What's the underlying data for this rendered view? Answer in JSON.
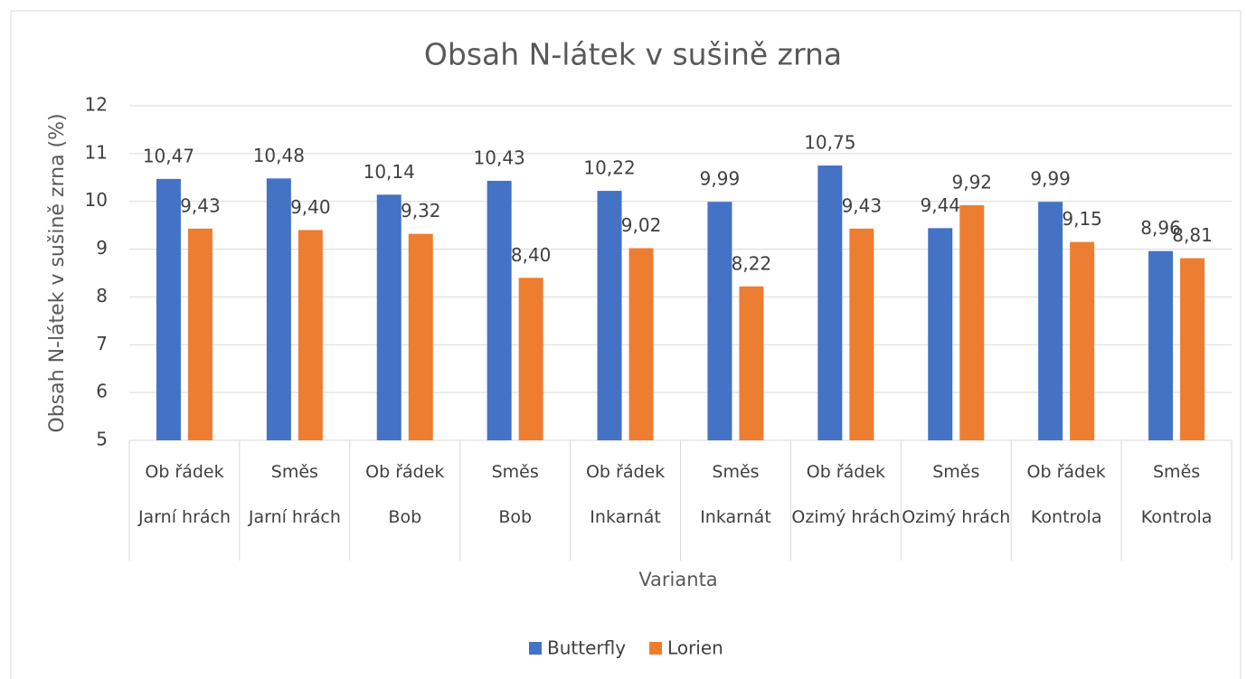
{
  "chart_data": {
    "type": "bar",
    "title": "Obsah N-látek v sušině zrna",
    "x_label": "Varianta",
    "y_label": "Obsah N-látek v sušině zrna (%)",
    "categories": [
      [
        "Ob řádek",
        "Jarní hrách"
      ],
      [
        "Směs",
        "Jarní hrách"
      ],
      [
        "Ob řádek",
        "Bob"
      ],
      [
        "Směs",
        "Bob"
      ],
      [
        "Ob řádek",
        "Inkarnát"
      ],
      [
        "Směs",
        "Inkarnát"
      ],
      [
        "Ob řádek",
        "Ozimý hrách"
      ],
      [
        "Směs",
        "Ozimý hrách"
      ],
      [
        "Ob řádek",
        "Kontrola"
      ],
      [
        "Směs",
        "Kontrola"
      ]
    ],
    "series": [
      {
        "name": "Butterfly",
        "color": "#4472c4",
        "values": [
          10.47,
          10.48,
          10.14,
          10.43,
          10.22,
          9.99,
          10.75,
          9.44,
          9.99,
          8.96
        ],
        "value_labels": [
          "10,47",
          "10,48",
          "10,14",
          "10,43",
          "10,22",
          "9,99",
          "10,75",
          "9,44",
          "9,99",
          "8,96"
        ]
      },
      {
        "name": "Lorien",
        "color": "#ed7d31",
        "values": [
          9.43,
          9.4,
          9.32,
          8.4,
          9.02,
          8.22,
          9.43,
          9.92,
          9.15,
          8.81
        ],
        "value_labels": [
          "9,43",
          "9,40",
          "9,32",
          "8,40",
          "9,02",
          "8,22",
          "9,43",
          "9,92",
          "9,15",
          "8,81"
        ]
      }
    ],
    "ylim": [
      5,
      12
    ],
    "yticks": [
      5,
      6,
      7,
      8,
      9,
      10,
      11,
      12
    ],
    "grid": true,
    "legend": "bottom"
  }
}
